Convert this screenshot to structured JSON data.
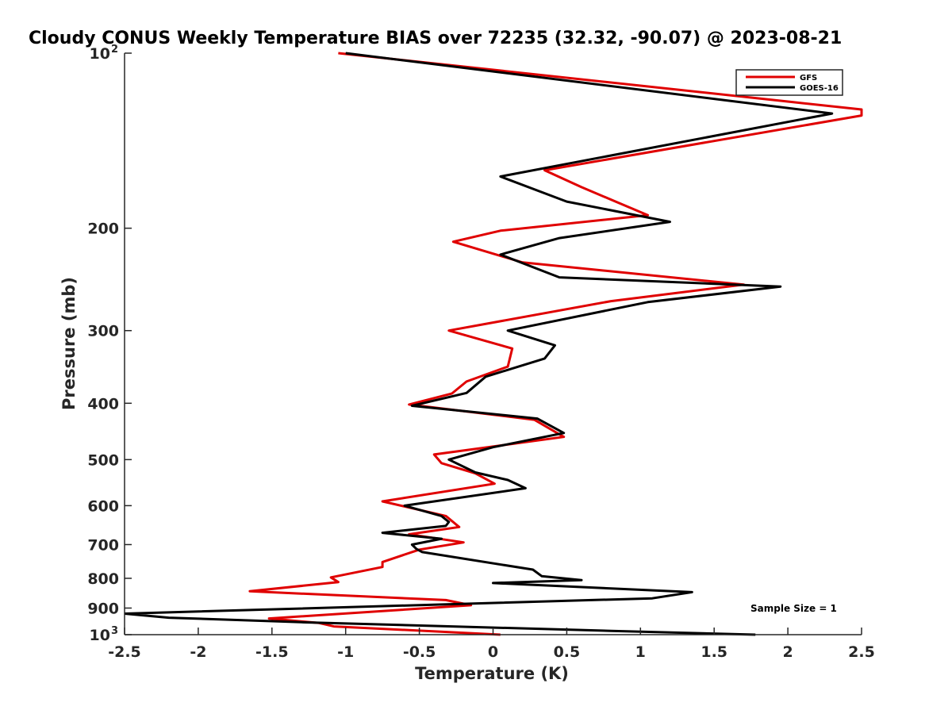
{
  "chart_data": {
    "type": "line",
    "title": "Cloudy CONUS Weekly Temperature BIAS over 72235 (32.32, -90.07) @ 2023-08-21",
    "xlabel": "Temperature (K)",
    "ylabel": "Pressure (mb)",
    "xlim": [
      -2.5,
      2.5
    ],
    "ylim": [
      100,
      1000
    ],
    "yscale": "log",
    "y_reversed": true,
    "xticks": [
      "-2.5",
      "-2",
      "-1.5",
      "-1",
      "-0.5",
      "0",
      "0.5",
      "1",
      "1.5",
      "2",
      "2.5"
    ],
    "xtick_values": [
      -2.5,
      -2,
      -1.5,
      -1,
      -0.5,
      0,
      0.5,
      1,
      1.5,
      2,
      2.5
    ],
    "yticks": [
      {
        "value": 100,
        "base": "10",
        "exp": "2"
      },
      {
        "value": 200,
        "label": "200"
      },
      {
        "value": 300,
        "label": "300"
      },
      {
        "value": 400,
        "label": "400"
      },
      {
        "value": 500,
        "label": "500"
      },
      {
        "value": 600,
        "label": "600"
      },
      {
        "value": 700,
        "label": "700"
      },
      {
        "value": 800,
        "label": "800"
      },
      {
        "value": 900,
        "label": "900"
      },
      {
        "value": 1000,
        "base": "10",
        "exp": "3"
      }
    ],
    "legend_position": "top-right",
    "annotation": "Sample Size = 1",
    "series": [
      {
        "name": "GFS",
        "color": "#e00000",
        "points": [
          [
            -1.05,
            100
          ],
          [
            2.5,
            125
          ],
          [
            2.5,
            128
          ],
          [
            0.35,
            159
          ],
          [
            0.6,
            170
          ],
          [
            1.05,
            190
          ],
          [
            0.05,
            202
          ],
          [
            -0.27,
            211
          ],
          [
            0.2,
            229
          ],
          [
            1.7,
            250
          ],
          [
            0.8,
            267
          ],
          [
            -0.3,
            300
          ],
          [
            0.13,
            322
          ],
          [
            0.1,
            346
          ],
          [
            -0.18,
            367
          ],
          [
            -0.28,
            385
          ],
          [
            -0.57,
            402
          ],
          [
            0.28,
            427
          ],
          [
            0.48,
            457
          ],
          [
            -0.4,
            490
          ],
          [
            -0.35,
            507
          ],
          [
            -0.12,
            528
          ],
          [
            0.01,
            550
          ],
          [
            -0.75,
            590
          ],
          [
            -0.32,
            625
          ],
          [
            -0.23,
            653
          ],
          [
            -0.57,
            672
          ],
          [
            -0.2,
            694
          ],
          [
            -0.5,
            714
          ],
          [
            -0.75,
            750
          ],
          [
            -0.75,
            765
          ],
          [
            -1.1,
            797
          ],
          [
            -1.05,
            812
          ],
          [
            -1.65,
            842
          ],
          [
            -0.32,
            872
          ],
          [
            -0.15,
            890
          ],
          [
            -1.52,
            938
          ],
          [
            -1.18,
            955
          ],
          [
            -1.08,
            968
          ],
          [
            0.05,
            1000
          ]
        ]
      },
      {
        "name": "GOES-16",
        "color": "#000000",
        "points": [
          [
            -1.0,
            100
          ],
          [
            2.3,
            127
          ],
          [
            0.05,
            163
          ],
          [
            0.5,
            180
          ],
          [
            1.2,
            195
          ],
          [
            0.45,
            208
          ],
          [
            0.05,
            222
          ],
          [
            0.45,
            243
          ],
          [
            1.95,
            252
          ],
          [
            1.05,
            268
          ],
          [
            0.1,
            300
          ],
          [
            0.42,
            318
          ],
          [
            0.35,
            335
          ],
          [
            -0.05,
            360
          ],
          [
            -0.18,
            384
          ],
          [
            -0.55,
            404
          ],
          [
            0.3,
            425
          ],
          [
            0.48,
            450
          ],
          [
            0.0,
            476
          ],
          [
            -0.3,
            500
          ],
          [
            -0.12,
            526
          ],
          [
            0.1,
            542
          ],
          [
            0.22,
            560
          ],
          [
            -0.6,
            600
          ],
          [
            -0.35,
            625
          ],
          [
            -0.3,
            640
          ],
          [
            -0.32,
            650
          ],
          [
            -0.75,
            668
          ],
          [
            -0.35,
            684
          ],
          [
            -0.55,
            700
          ],
          [
            -0.52,
            712
          ],
          [
            -0.48,
            721
          ],
          [
            0.27,
            773
          ],
          [
            0.33,
            793
          ],
          [
            0.6,
            806
          ],
          [
            0.0,
            815
          ],
          [
            1.35,
            845
          ],
          [
            1.08,
            866
          ],
          [
            -2.5,
            920
          ],
          [
            -2.2,
            935
          ],
          [
            -1.3,
            952
          ],
          [
            0.8,
            985
          ],
          [
            1.78,
            1000
          ]
        ]
      }
    ]
  }
}
